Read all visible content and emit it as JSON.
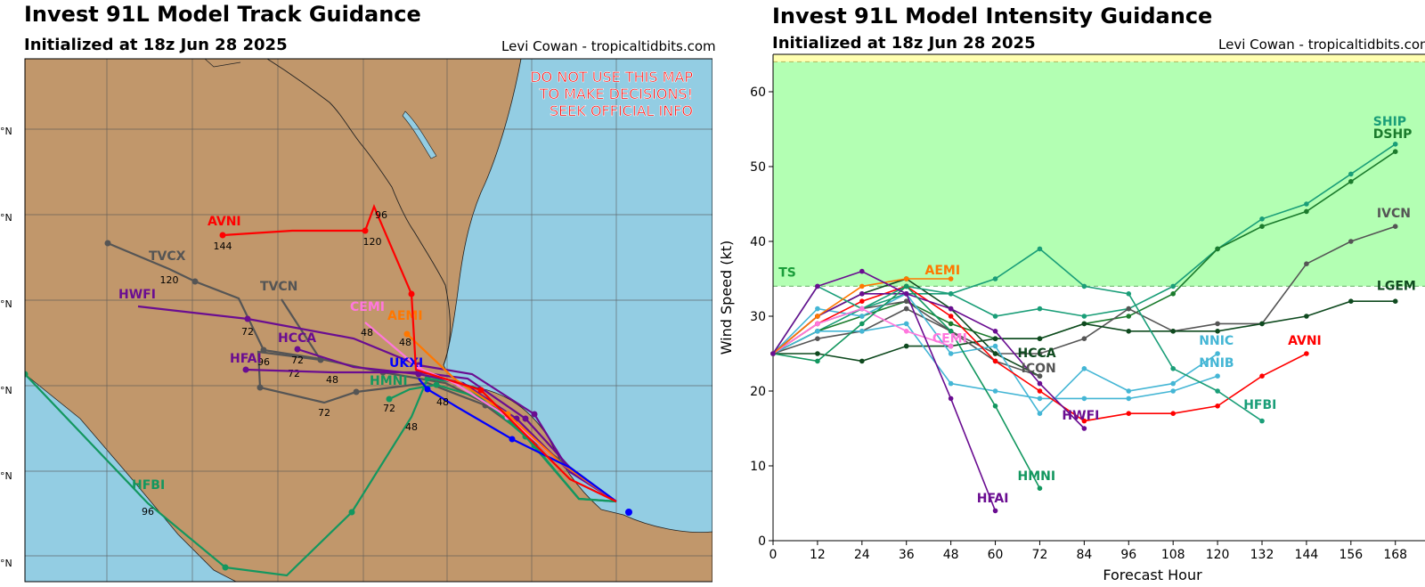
{
  "track": {
    "title": "Invest 91L Model Track Guidance",
    "subtitle": "Initialized at 18z Jun 28 2025",
    "credit": "Levi Cowan - tropicaltidbits.com",
    "warning": [
      "DO NOT USE THIS MAP",
      "TO MAKE DECISIONS!",
      "SEEK OFFICIAL INFO"
    ],
    "lat_labels": [
      "°N",
      "°N",
      "°N",
      "°N",
      "°N",
      "°N"
    ],
    "colors": {
      "land": "#c1976b",
      "water": "#93cde3",
      "grid": "#555555"
    }
  },
  "intensity": {
    "title": "Invest 91L Model Intensity Guidance",
    "subtitle": "Initialized at 18z Jun 28 2025",
    "credit": "Levi Cowan - tropicaltidbits.com",
    "ts_label": "TS"
  },
  "chart_data": [
    {
      "type": "line",
      "title": "Invest 91L Model Track Guidance",
      "note": "map of model forecast tracks",
      "series": [
        {
          "name": "AVNI",
          "color": "#ff0000",
          "hour_labels": [
            "144",
            "120",
            "96"
          ]
        },
        {
          "name": "TVCX",
          "color": "#555555",
          "hour_labels": [
            "120"
          ]
        },
        {
          "name": "TVCN",
          "color": "#555555",
          "hour_labels": [
            "96",
            "72",
            "72"
          ]
        },
        {
          "name": "HWFI",
          "color": "#6a0d91",
          "hour_labels": [
            "72"
          ]
        },
        {
          "name": "HCCA",
          "color": "#6a0d91",
          "hour_labels": [
            "72",
            "48"
          ]
        },
        {
          "name": "HFAI",
          "color": "#6a0d91",
          "hour_labels": []
        },
        {
          "name": "CEMI",
          "color": "#ff77dd",
          "hour_labels": [
            "48"
          ]
        },
        {
          "name": "AEMI",
          "color": "#ff7700",
          "hour_labels": [
            "48"
          ]
        },
        {
          "name": "UKXI",
          "color": "#0000ff",
          "hour_labels": [
            "48"
          ]
        },
        {
          "name": "HMNI",
          "color": "#13975f",
          "hour_labels": [
            "72",
            "48"
          ]
        },
        {
          "name": "HFBI",
          "color": "#13975f",
          "hour_labels": [
            "96"
          ]
        }
      ]
    },
    {
      "type": "line",
      "title": "Invest 91L Model Intensity Guidance",
      "xlabel": "Forecast Hour",
      "ylabel": "Wind Speed (kt)",
      "xlim": [
        0,
        176
      ],
      "ylim": [
        0,
        65
      ],
      "xticks": [
        0,
        12,
        24,
        36,
        48,
        60,
        72,
        84,
        96,
        108,
        120,
        132,
        144,
        156,
        168
      ],
      "yticks": [
        0,
        10,
        20,
        30,
        40,
        50,
        60
      ],
      "ts_threshold": 34,
      "cat1_threshold": 64,
      "series": [
        {
          "name": "SHIP",
          "color": "#1a9e78",
          "x": [
            0,
            12,
            24,
            36,
            48,
            60,
            72,
            84,
            96,
            108,
            120,
            132,
            144,
            156,
            168
          ],
          "y": [
            25,
            28,
            31,
            33,
            33,
            30,
            31,
            30,
            31,
            34,
            39,
            43,
            45,
            49,
            53
          ]
        },
        {
          "name": "DSHP",
          "color": "#1b7b2c",
          "x": [
            0,
            12,
            24,
            36,
            48,
            60,
            72,
            84,
            96,
            108,
            120,
            132,
            144,
            156,
            168
          ],
          "y": [
            25,
            28,
            30,
            32,
            29,
            27,
            27,
            29,
            30,
            33,
            39,
            42,
            44,
            48,
            52
          ]
        },
        {
          "name": "IVCN",
          "color": "#555555",
          "x": [
            0,
            12,
            24,
            36,
            48,
            60,
            72,
            84,
            96,
            108,
            120,
            132,
            144,
            156,
            168
          ],
          "y": [
            25,
            27,
            28,
            31,
            28,
            25,
            25,
            27,
            31,
            28,
            29,
            29,
            37,
            40,
            42
          ]
        },
        {
          "name": "LGEM",
          "color": "#0f4a1f",
          "x": [
            0,
            12,
            24,
            36,
            48,
            60,
            72,
            84,
            96,
            108,
            120,
            132,
            144,
            156,
            168
          ],
          "y": [
            25,
            25,
            24,
            26,
            26,
            27,
            27,
            29,
            28,
            28,
            28,
            29,
            30,
            32,
            32
          ]
        },
        {
          "name": "HCCA",
          "color": "#0f4a1f",
          "x": [
            0,
            12,
            24,
            36,
            48,
            60,
            72
          ],
          "y": [
            25,
            30,
            33,
            35,
            31,
            25,
            22
          ]
        },
        {
          "name": "ICON",
          "color": "#555555",
          "x": [
            0,
            12,
            24,
            36,
            48,
            60,
            72
          ],
          "y": [
            25,
            29,
            31,
            32,
            28,
            24,
            22
          ]
        },
        {
          "name": "NNIC",
          "color": "#44b6d5",
          "x": [
            0,
            12,
            24,
            36,
            48,
            60,
            72,
            84,
            96,
            108,
            120
          ],
          "y": [
            25,
            31,
            30,
            33,
            25,
            26,
            17,
            23,
            20,
            21,
            25
          ]
        },
        {
          "name": "NNIB",
          "color": "#44b6d5",
          "x": [
            0,
            12,
            24,
            36,
            48,
            60,
            72,
            84,
            96,
            108,
            120
          ],
          "y": [
            25,
            28,
            28,
            29,
            21,
            20,
            19,
            19,
            19,
            20,
            22
          ]
        },
        {
          "name": "AVNI",
          "color": "#ff0000",
          "x": [
            0,
            12,
            24,
            36,
            48,
            60,
            72,
            84,
            96,
            108,
            120,
            132,
            144
          ],
          "y": [
            25,
            29,
            32,
            34,
            30,
            24,
            20,
            16,
            17,
            17,
            18,
            22,
            25
          ]
        },
        {
          "name": "HWFI",
          "color": "#6a0d91",
          "x": [
            0,
            12,
            24,
            36,
            48,
            60,
            72,
            84
          ],
          "y": [
            25,
            30,
            33,
            33,
            31,
            28,
            21,
            15
          ]
        },
        {
          "name": "HFBI",
          "color": "#1a9e78",
          "x": [
            0,
            12,
            24,
            36,
            48,
            60,
            72,
            84,
            96,
            108,
            120,
            132
          ],
          "y": [
            25,
            34,
            31,
            34,
            33,
            35,
            39,
            34,
            33,
            23,
            20,
            16
          ]
        },
        {
          "name": "CEMI",
          "color": "#ff77dd",
          "x": [
            0,
            12,
            24,
            36,
            48
          ],
          "y": [
            25,
            29,
            31,
            28,
            26
          ]
        },
        {
          "name": "AEMI",
          "color": "#ff7700",
          "x": [
            0,
            12,
            24,
            36,
            48
          ],
          "y": [
            25,
            30,
            34,
            35,
            35
          ]
        },
        {
          "name": "HMNI",
          "color": "#13975f",
          "x": [
            0,
            12,
            24,
            36,
            48,
            60,
            72
          ],
          "y": [
            25,
            24,
            29,
            34,
            28,
            18,
            7
          ]
        },
        {
          "name": "HFAI",
          "color": "#6a0d91",
          "x": [
            0,
            12,
            24,
            36,
            48,
            60
          ],
          "y": [
            25,
            34,
            36,
            33,
            19,
            4
          ]
        }
      ],
      "labels": [
        {
          "name": "SHIP",
          "color": "#1a9e78"
        },
        {
          "name": "DSHP",
          "color": "#1b7b2c"
        },
        {
          "name": "IVCN",
          "color": "#555555"
        },
        {
          "name": "LGEM",
          "color": "#0f4a1f"
        },
        {
          "name": "AEMI",
          "color": "#ff7700"
        },
        {
          "name": "CEMI",
          "color": "#ff77dd"
        },
        {
          "name": "HCCA",
          "color": "#0f4a1f"
        },
        {
          "name": "ICON",
          "color": "#555555"
        },
        {
          "name": "NNIC",
          "color": "#44b6d5"
        },
        {
          "name": "NNIB",
          "color": "#44b6d5"
        },
        {
          "name": "AVNI",
          "color": "#ff0000"
        },
        {
          "name": "HWFI",
          "color": "#6a0d91"
        },
        {
          "name": "HFBI",
          "color": "#1a9e78"
        },
        {
          "name": "HMNI",
          "color": "#13975f"
        },
        {
          "name": "HFAI",
          "color": "#6a0d91"
        }
      ]
    }
  ]
}
